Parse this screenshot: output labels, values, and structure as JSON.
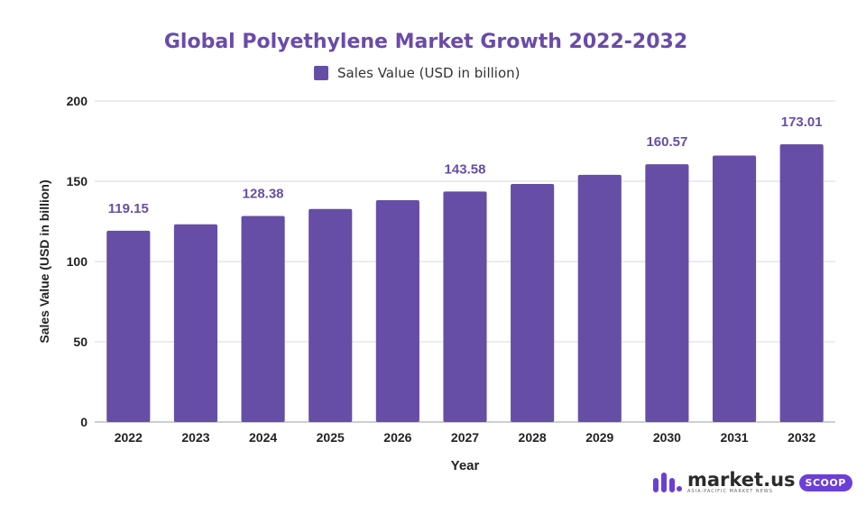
{
  "colors": {
    "accent": "#664EA6",
    "title": "#6A4BA8",
    "grid": "#D9D9D9",
    "axis_text": "#222222"
  },
  "chart_data": {
    "type": "bar",
    "title": "Global Polyethylene Market Growth 2022-2032",
    "xlabel": "Year",
    "ylabel": "Sales Value (USD in billion)",
    "legend_position": "top-center",
    "grid": true,
    "ylim": [
      0,
      200
    ],
    "yticks": [
      "0",
      "50",
      "100",
      "150",
      "200"
    ],
    "categories": [
      "2022",
      "2023",
      "2024",
      "2025",
      "2026",
      "2027",
      "2028",
      "2029",
      "2030",
      "2031",
      "2032"
    ],
    "series": [
      {
        "name": "Sales Value (USD in billion)",
        "color": "#664EA6",
        "values": [
          119.15,
          123.2,
          128.38,
          132.7,
          138.2,
          143.58,
          148.3,
          154.0,
          160.57,
          166.0,
          173.01
        ],
        "data_labels": [
          "119.15",
          "",
          "128.38",
          "",
          "",
          "143.58",
          "",
          "",
          "160.57",
          "",
          "173.01"
        ]
      }
    ]
  },
  "logo": {
    "name": "market.us",
    "tagline": "ASIA-PACIFIC MARKET NEWS",
    "badge": "SCOOP"
  }
}
